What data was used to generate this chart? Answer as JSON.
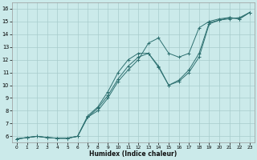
{
  "xlabel": "Humidex (Indice chaleur)",
  "bg_color": "#cbeaea",
  "line_color": "#2d7070",
  "grid_color": "#a8cccc",
  "xlim": [
    -0.5,
    23.5
  ],
  "ylim": [
    5.5,
    16.5
  ],
  "xticks": [
    0,
    1,
    2,
    3,
    4,
    5,
    6,
    7,
    8,
    9,
    10,
    11,
    12,
    13,
    14,
    15,
    16,
    17,
    18,
    19,
    20,
    21,
    22,
    23
  ],
  "yticks": [
    6,
    7,
    8,
    9,
    10,
    11,
    12,
    13,
    14,
    15,
    16
  ],
  "line1_x": [
    0,
    1,
    2,
    3,
    4,
    5,
    6,
    7,
    8,
    9,
    10,
    11,
    12,
    13,
    14,
    15,
    16,
    17,
    18,
    19,
    20,
    21,
    22,
    23
  ],
  "line1_y": [
    5.8,
    5.9,
    6.0,
    5.9,
    5.85,
    5.85,
    6.0,
    7.5,
    8.2,
    9.2,
    10.5,
    11.5,
    12.2,
    12.5,
    11.4,
    10.0,
    10.3,
    11.0,
    12.2,
    14.8,
    15.1,
    15.3,
    15.2,
    15.7
  ],
  "line2_x": [
    0,
    1,
    2,
    3,
    4,
    5,
    6,
    7,
    8,
    9,
    10,
    11,
    12,
    13,
    14,
    15,
    16,
    17,
    18,
    19,
    20,
    21,
    22,
    23
  ],
  "line2_y": [
    5.8,
    5.9,
    6.0,
    5.9,
    5.85,
    5.85,
    6.0,
    7.5,
    8.0,
    9.0,
    10.3,
    11.2,
    12.0,
    13.3,
    13.7,
    12.5,
    12.2,
    12.5,
    14.5,
    15.0,
    15.2,
    15.3,
    15.2,
    15.7
  ],
  "line3_x": [
    0,
    1,
    2,
    3,
    4,
    5,
    6,
    7,
    8,
    9,
    10,
    11,
    12,
    13,
    14,
    15,
    16,
    17,
    18,
    19,
    20,
    21,
    22,
    23
  ],
  "line3_y": [
    5.8,
    5.9,
    6.0,
    5.9,
    5.85,
    5.85,
    6.0,
    7.6,
    8.3,
    9.5,
    11.0,
    12.0,
    12.5,
    12.5,
    11.5,
    10.0,
    10.4,
    11.2,
    12.5,
    14.9,
    15.1,
    15.2,
    15.3,
    15.7
  ]
}
